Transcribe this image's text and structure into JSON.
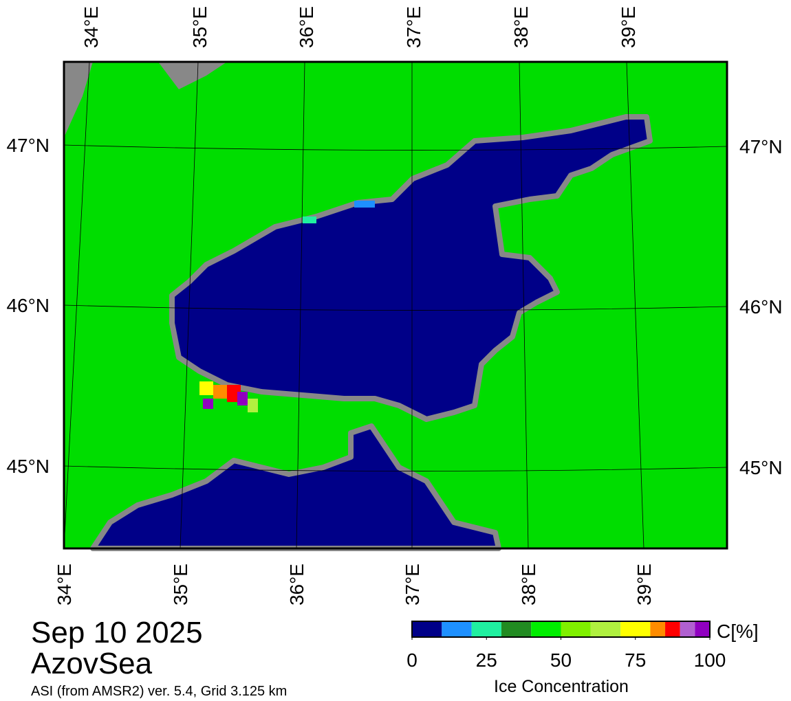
{
  "map": {
    "top_lon_labels": [
      "34°E",
      "35°E",
      "36°E",
      "37°E",
      "38°E",
      "39°E"
    ],
    "bottom_lon_labels": [
      "34°E",
      "35°E",
      "36°E",
      "37°E",
      "38°E",
      "39°E"
    ],
    "left_lat_labels": [
      "47°N",
      "46°N",
      "45°N"
    ],
    "right_lat_labels": [
      "47°N",
      "46°N",
      "45°N"
    ]
  },
  "footer": {
    "date": "Sep 10 2025",
    "region": "AzovSea",
    "caption": "ASI (from AMSR2) ver. 5.4,  Grid 3.125 km"
  },
  "colorbar": {
    "unit": "C[%]",
    "label": "Ice Concentration",
    "ticks": [
      0,
      25,
      50,
      75,
      100
    ],
    "bounds": [
      0,
      10,
      20,
      30,
      40,
      50,
      60,
      70,
      80,
      85,
      90,
      95,
      100
    ],
    "colors": [
      "#000088",
      "#1e90ff",
      "#20f0a0",
      "#228b22",
      "#00ee00",
      "#80f000",
      "#b0f040",
      "#ffff00",
      "#ff8c00",
      "#ff0000",
      "#b060d0",
      "#9000c0"
    ]
  }
}
